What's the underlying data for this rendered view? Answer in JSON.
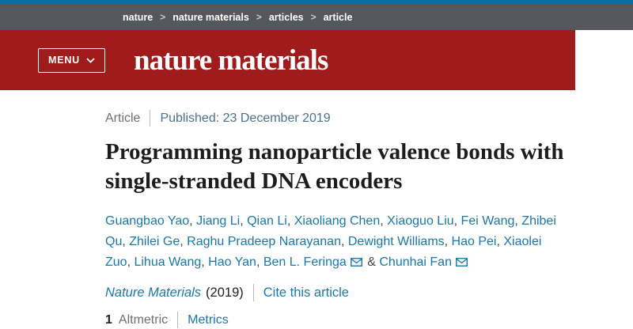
{
  "breadcrumb": {
    "items": [
      "nature",
      "nature materials",
      "articles",
      "article"
    ],
    "separator": ">"
  },
  "header": {
    "menu_label": "MENU",
    "journal_logo": "nature materials"
  },
  "article": {
    "type_label": "Article",
    "published": "Published: 23 December 2019",
    "title": "Programming nanoparticle valence bonds with single-stranded DNA encoders",
    "authors": [
      {
        "name": "Guangbao Yao"
      },
      {
        "name": "Jiang Li"
      },
      {
        "name": "Qian Li"
      },
      {
        "name": "Xiaoliang Chen"
      },
      {
        "name": "Xiaoguo Liu"
      },
      {
        "name": "Fei Wang"
      },
      {
        "name": "Zhibei Qu"
      },
      {
        "name": "Zhilei Ge"
      },
      {
        "name": "Raghu Pradeep Narayanan"
      },
      {
        "name": "Dewight Williams"
      },
      {
        "name": "Hao Pei"
      },
      {
        "name": "Xiaolei Zuo"
      },
      {
        "name": "Lihua Wang"
      },
      {
        "name": "Hao Yan"
      },
      {
        "name": "Ben L. Feringa",
        "email": true
      },
      {
        "name": "Chunhai Fan",
        "email": true
      }
    ],
    "journal": "Nature Materials",
    "year": "(2019)",
    "cite_link": "Cite this article",
    "altmetric_count": "1",
    "altmetric_label": "Altmetric",
    "metrics_link": "Metrics"
  },
  "colors": {
    "top_strip_blue": "#0c6d9e",
    "breadcrumb_bar_gray": "#56575e",
    "masthead_red": "#a01c1c",
    "link_blue": "#1878ad",
    "published_steel_blue": "#4a7190",
    "muted_gray": "#6e6e6e",
    "text_dark": "#1c1c1c",
    "divider_gray": "#b8b8b8"
  }
}
